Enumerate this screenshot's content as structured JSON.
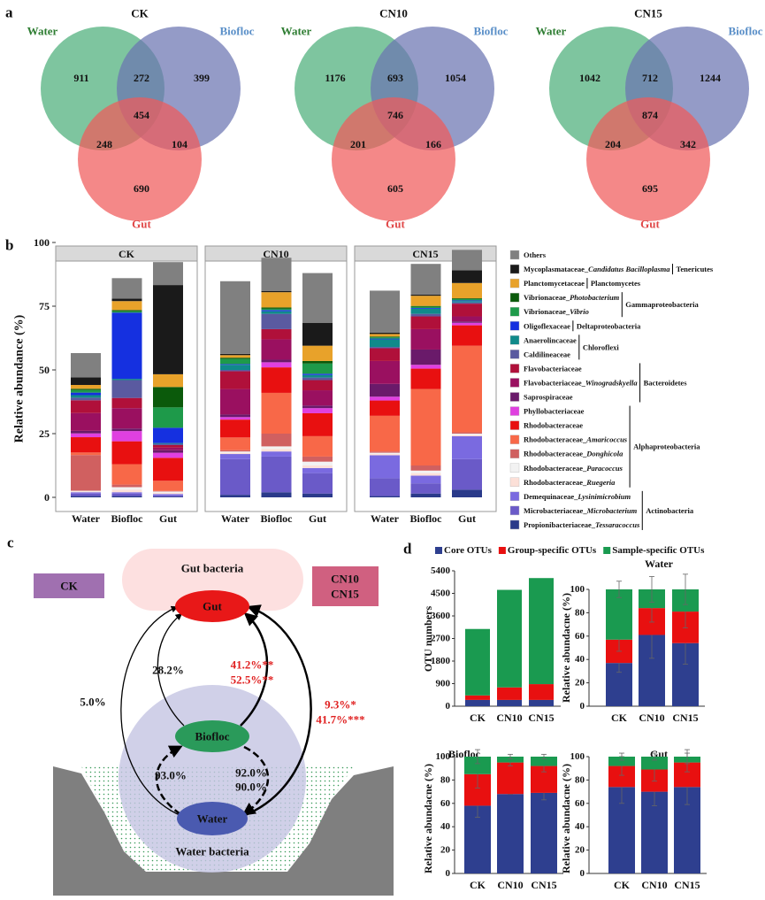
{
  "panel_labels": [
    "a",
    "b",
    "c",
    "d"
  ],
  "chart_data": [
    {
      "type": "venn",
      "title": "CK",
      "sets": [
        {
          "name": "Water",
          "color": "#4caf7a",
          "label_color": "#2e7d32"
        },
        {
          "name": "Biofloc",
          "color": "#6b74b2",
          "label_color": "#5a8fc8"
        },
        {
          "name": "Gut",
          "color": "#f05a5a",
          "label_color": "#e04848"
        }
      ],
      "values": [
        911,
        272,
        399,
        454,
        248,
        104,
        690
      ]
    },
    {
      "type": "venn",
      "title": "CN10",
      "sets": [
        {
          "name": "Water",
          "color": "#4caf7a",
          "label_color": "#2e7d32"
        },
        {
          "name": "Biofloc",
          "color": "#6b74b2",
          "label_color": "#5a8fc8"
        },
        {
          "name": "Gut",
          "color": "#f05a5a",
          "label_color": "#e04848"
        }
      ],
      "values": [
        1176,
        693,
        1054,
        746,
        201,
        166,
        605
      ]
    },
    {
      "type": "venn",
      "title": "CN15",
      "sets": [
        {
          "name": "Water",
          "color": "#4caf7a",
          "label_color": "#2e7d32"
        },
        {
          "name": "Biofloc",
          "color": "#6b74b2",
          "label_color": "#5a8fc8"
        },
        {
          "name": "Gut",
          "color": "#f05a5a",
          "label_color": "#e04848"
        }
      ],
      "values": [
        1042,
        712,
        1244,
        874,
        204,
        342,
        695
      ]
    },
    {
      "type": "facet_bar",
      "stacked": true,
      "ylabel": "Relative abundance (%)",
      "facets": [
        "CK",
        "CN10",
        "CN15"
      ],
      "categories": [
        "Water",
        "Biofloc",
        "Gut",
        "Water",
        "Biofloc",
        "Gut",
        "Water",
        "Biofloc",
        "Gut"
      ],
      "ylim": [
        0,
        100
      ],
      "yticks": [
        0,
        25,
        50,
        75,
        100
      ],
      "legend_groups": [
        "Tenericutes",
        "Planctomycetes",
        "Gammaproteobacteria",
        "Deltaproteobacteria",
        "Chloroflexi",
        "Bacteroidetes",
        "Alphaproteobacteria",
        "Actinobacteria"
      ],
      "series": [
        {
          "name": "Others",
          "color": "#808080",
          "values": [
            9.5,
            8,
            9,
            28.5,
            13,
            19.5,
            16.5,
            12,
            8
          ]
        },
        {
          "name": "Mycoplasmataceae_Candidatus Bacilloplasma",
          "color": "#1a1a1a",
          "values": [
            3,
            1,
            35,
            0.5,
            0.5,
            9,
            0.5,
            0.5,
            5
          ]
        },
        {
          "name": "Planctomycetaceae",
          "color": "#e8a22a",
          "values": [
            1.5,
            3.5,
            5,
            1,
            6,
            6,
            1,
            4,
            6
          ]
        },
        {
          "name": "Vibrionaceae_Photobacterium",
          "color": "#0b5a0b",
          "values": [
            0.5,
            0.5,
            8,
            0.5,
            0.5,
            1,
            0.3,
            0.3,
            0.3
          ]
        },
        {
          "name": "Vibrionaceae_Vibrio",
          "color": "#1e9a4a",
          "values": [
            1,
            0.5,
            8,
            2,
            0.5,
            4,
            0.5,
            0.5,
            0.5
          ]
        },
        {
          "name": "Oligoflexaceae",
          "color": "#1530e0",
          "values": [
            1,
            26,
            6,
            0.3,
            0.5,
            0.5,
            0.3,
            0.3,
            0.3
          ]
        },
        {
          "name": "Anaerolincaceae",
          "color": "#108a8a",
          "values": [
            1,
            0.5,
            0.3,
            2,
            1,
            1,
            3,
            2,
            0.5
          ]
        },
        {
          "name": "Caldilineaceae",
          "color": "#5a5aa0",
          "values": [
            1,
            7,
            0.5,
            0.5,
            6,
            1,
            0.5,
            1,
            0.5
          ]
        },
        {
          "name": "Flavobacteriaceae",
          "color": "#b0103a",
          "values": [
            5,
            4,
            1,
            7,
            4,
            4,
            5,
            5,
            5
          ]
        },
        {
          "name": "Flavobacteriaceae_Winogradskyella",
          "color": "#9a1060",
          "values": [
            7,
            8,
            1,
            10,
            8,
            6,
            9,
            8,
            2
          ]
        },
        {
          "name": "Saprospiraceae",
          "color": "#6a1a6a",
          "values": [
            1,
            1,
            1,
            1,
            1,
            1,
            5,
            6,
            0.5
          ]
        },
        {
          "name": "Phyllobacteriaceae",
          "color": "#e040e0",
          "values": [
            1.5,
            4,
            2,
            1,
            2,
            2,
            1.5,
            1.5,
            1
          ]
        },
        {
          "name": "Rhodobacteraceae",
          "color": "#e81010",
          "values": [
            6,
            9,
            9,
            7,
            10,
            9,
            6,
            8,
            8
          ]
        },
        {
          "name": "Rhodobacteraceae_Amaricoccus",
          "color": "#f86848",
          "values": [
            1,
            8,
            4,
            5,
            16,
            8,
            14,
            30,
            34
          ]
        },
        {
          "name": "Rhodobacteraceae_Donghicola",
          "color": "#d06060",
          "values": [
            14,
            1,
            0.2,
            0.5,
            5,
            2,
            0.5,
            2,
            0.5
          ]
        },
        {
          "name": "Rhodobacteraceae_Paracoccus",
          "color": "#f2f2f2",
          "values": [
            0.3,
            1,
            0.5,
            0.5,
            1,
            1.5,
            0.5,
            1,
            0.5
          ]
        },
        {
          "name": "Rhodobacteraceae_Ruegeria",
          "color": "#fce0d8",
          "values": [
            0.3,
            1,
            0.5,
            0.5,
            1,
            1,
            0.5,
            1,
            0.5
          ]
        },
        {
          "name": "Demequinaceae_Lysinimicrobium",
          "color": "#7a6ae0",
          "values": [
            0.5,
            0.5,
            0.5,
            2,
            2,
            2,
            9,
            3,
            9
          ]
        },
        {
          "name": "Microbacteriaceae_Microbacterium",
          "color": "#6a5ac8",
          "values": [
            1,
            1,
            0.5,
            14,
            14,
            8,
            7,
            4,
            12
          ]
        },
        {
          "name": "Propionibacteriaceae_Tessaracoccus",
          "color": "#2a3a8a",
          "values": [
            0.5,
            0.5,
            0.3,
            1,
            2,
            1.5,
            0.5,
            1.5,
            3
          ]
        }
      ]
    },
    {
      "type": "bar",
      "stacked": true,
      "ylabel": "OTU numbers",
      "categories": [
        "CK",
        "CN10",
        "CN15"
      ],
      "ylim": [
        0,
        5400
      ],
      "yticks": [
        0,
        900,
        1800,
        2700,
        3600,
        4500,
        5400
      ],
      "series": [
        {
          "name": "Core OTUs",
          "color": "#2e3f8f",
          "values": [
            250,
            250,
            250
          ]
        },
        {
          "name": "Group-specific OTUs",
          "color": "#e81010",
          "values": [
            180,
            500,
            630
          ]
        },
        {
          "name": "Sample-specific OTUs",
          "color": "#1a9a50",
          "values": [
            2650,
            3890,
            4230
          ]
        }
      ]
    },
    {
      "type": "bar",
      "stacked": true,
      "title": "Water",
      "ylabel": "Relative abundacne (%)",
      "categories": [
        "CK",
        "CN10",
        "CN15"
      ],
      "ylim": [
        0,
        100
      ],
      "yticks": [
        0,
        20,
        40,
        60,
        80,
        100
      ],
      "series": [
        {
          "color": "#2e3f8f",
          "values": [
            37,
            61,
            54
          ],
          "errors": [
            8,
            20,
            18
          ]
        },
        {
          "color": "#e81010",
          "values": [
            20,
            23,
            27
          ],
          "errors": [
            10,
            12,
            14
          ]
        },
        {
          "color": "#1a9a50",
          "values": [
            43,
            16,
            19
          ],
          "errors": [
            7,
            11,
            13
          ]
        }
      ]
    },
    {
      "type": "bar",
      "stacked": true,
      "title": "Biofloc",
      "ylabel": "Relative abundacne (%)",
      "categories": [
        "CK",
        "CN10",
        "CN15"
      ],
      "ylim": [
        0,
        100
      ],
      "yticks": [
        0,
        20,
        40,
        60,
        80,
        100
      ],
      "series": [
        {
          "color": "#2e3f8f",
          "values": [
            58,
            68,
            69
          ],
          "errors": [
            10,
            0,
            6
          ]
        },
        {
          "color": "#e81010",
          "values": [
            27,
            27,
            23
          ],
          "errors": [
            12,
            3,
            5
          ]
        },
        {
          "color": "#1a9a50",
          "values": [
            15,
            5,
            8
          ],
          "errors": [
            6,
            2,
            2
          ]
        }
      ]
    },
    {
      "type": "bar",
      "stacked": true,
      "title": "Gut",
      "ylabel": "Relative abundacne (%)",
      "categories": [
        "CK",
        "CN10",
        "CN15"
      ],
      "ylim": [
        0,
        100
      ],
      "yticks": [
        0,
        20,
        40,
        60,
        80,
        100
      ],
      "series": [
        {
          "color": "#2e3f8f",
          "values": [
            74,
            70,
            74
          ],
          "errors": [
            14,
            12,
            15
          ]
        },
        {
          "color": "#e81010",
          "values": [
            18,
            19,
            21
          ],
          "errors": [
            8,
            10,
            8
          ]
        },
        {
          "color": "#1a9a50",
          "values": [
            8,
            11,
            5
          ],
          "errors": [
            3,
            3,
            6
          ]
        }
      ]
    }
  ],
  "diagram": {
    "gut_region": "Gut bacteria",
    "water_region": "Water bacteria",
    "nodes": [
      "Gut",
      "Biofloc",
      "Water"
    ],
    "groups": [
      "CK",
      "CN10",
      "CN15"
    ],
    "edges": [
      {
        "labels": [
          "5.0%"
        ]
      },
      {
        "labels": [
          "28.2%"
        ]
      },
      {
        "labels": [
          "41.2%**",
          "52.5%**"
        ]
      },
      {
        "labels": [
          "9.3%*",
          "41.7%***"
        ]
      },
      {
        "labels": [
          "93.0%"
        ]
      },
      {
        "labels": [
          "92.0%",
          "90.0%"
        ]
      }
    ]
  }
}
